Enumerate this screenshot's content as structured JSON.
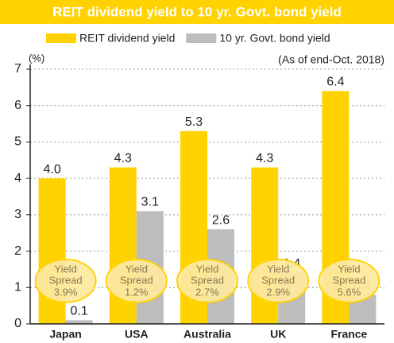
{
  "chart_data": {
    "type": "bar",
    "title": "REIT dividend yield to 10 yr. Govt. bond yield",
    "y_label": "(%)",
    "note": "(As of end-Oct. 2018)",
    "categories": [
      "Japan",
      "USA",
      "Australia",
      "UK",
      "France"
    ],
    "series": [
      {
        "name": "REIT dividend yield",
        "color": "#ffd200",
        "values": [
          4.0,
          4.3,
          5.3,
          4.3,
          6.4
        ],
        "value_labels": [
          "4.0",
          "4.3",
          "5.3",
          "4.3",
          "6.4"
        ]
      },
      {
        "name": "10 yr. Govt. bond yield",
        "color": "#bdbdbd",
        "values": [
          0.1,
          3.1,
          2.6,
          1.4,
          0.8
        ]
      }
    ],
    "spread_title": [
      "Yield",
      "Spread"
    ],
    "spread_labels": [
      "3.9%",
      "1.2%",
      "2.7%",
      "2.9%",
      "5.6%"
    ],
    "ylim": [
      0,
      7
    ],
    "yticks": [
      0,
      1,
      2,
      3,
      4,
      5,
      6,
      7
    ],
    "grid": true
  }
}
